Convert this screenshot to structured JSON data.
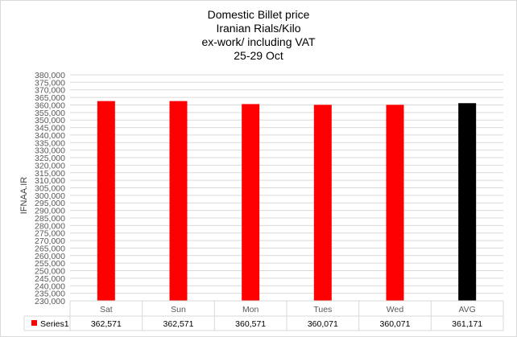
{
  "chart_data": {
    "type": "bar",
    "title_lines": [
      "Domestic Billet price",
      "Iranian Rials/Kilo",
      "ex-work/ including VAT",
      "25-29 Oct"
    ],
    "ylabel": "IFNAA.IR",
    "xlabel": "",
    "categories": [
      "Sat",
      "Sun",
      "Mon",
      "Tues",
      "Wed",
      "AVG"
    ],
    "series": [
      {
        "name": "Series1",
        "values": [
          362571,
          362571,
          360571,
          360071,
          360071,
          361171
        ],
        "value_labels": [
          "362,571",
          "362,571",
          "360,571",
          "360,071",
          "360,071",
          "361,171"
        ],
        "color": "#ff0000",
        "highlight_color": "#000000",
        "highlight_category": "AVG"
      }
    ],
    "ylim": [
      230000,
      380000
    ],
    "ytick_step": 5000,
    "grid": true,
    "data_table": true,
    "legend_placement": "data-table-left"
  }
}
